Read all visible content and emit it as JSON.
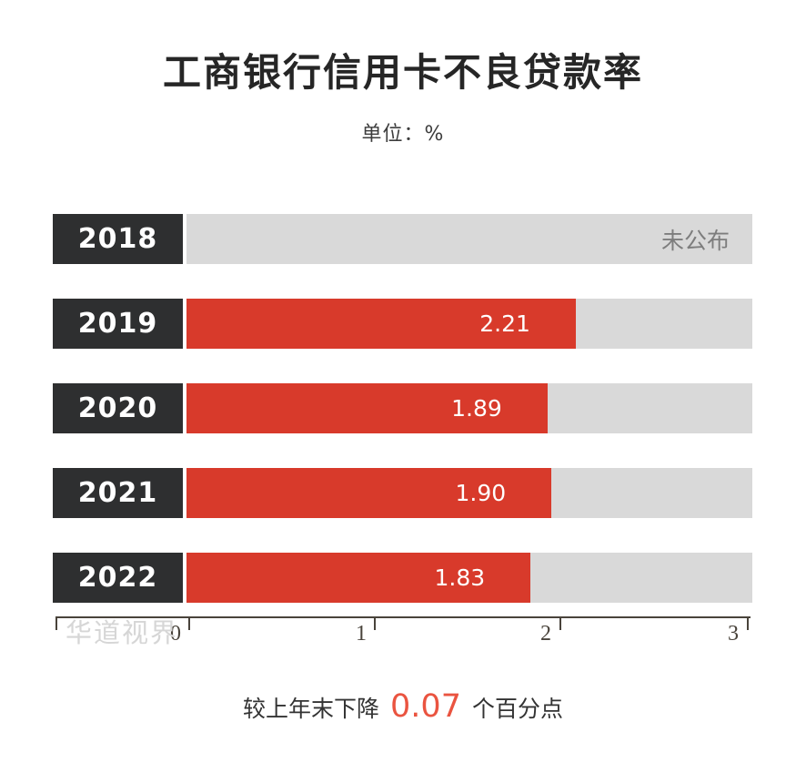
{
  "title": "工商银行信用卡不良贷款率",
  "unit_label": "单位：%",
  "watermark": "华道视界",
  "annotation": {
    "prefix": "较上年末下降",
    "highlight": "0.07",
    "suffix": "个百分点"
  },
  "colors": {
    "bar_red": "#d83a2b",
    "track_gray": "#d9d9d9",
    "year_box_dark": "#2e2f30",
    "highlight_red": "#ea5440",
    "axis": "#49433b",
    "not_published_text": "#7d7d7d",
    "watermark_gray": "#d6d6d6"
  },
  "chart_data": {
    "type": "bar",
    "orientation": "horizontal",
    "title": "工商银行信用卡不良贷款率",
    "unit": "%",
    "categories": [
      "2018",
      "2019",
      "2020",
      "2021",
      "2022"
    ],
    "values": [
      null,
      2.21,
      1.89,
      1.9,
      1.83
    ],
    "xlim": [
      0,
      3
    ],
    "x_ticks": [
      "0",
      "1",
      "2",
      "3"
    ],
    "grid": false,
    "legend": false,
    "annotation_text": "较上年末下降 0.07 个百分点",
    "rows": [
      {
        "year": "2018",
        "value": null,
        "value_label": "未公布",
        "bar_fraction": "0%"
      },
      {
        "year": "2019",
        "value": 2.21,
        "value_label": "2.21",
        "bar_fraction": "68.8%"
      },
      {
        "year": "2020",
        "value": 1.89,
        "value_label": "1.89",
        "bar_fraction": "63.8%"
      },
      {
        "year": "2021",
        "value": 1.9,
        "value_label": "1.90",
        "bar_fraction": "64.5%"
      },
      {
        "year": "2022",
        "value": 1.83,
        "value_label": "1.83",
        "bar_fraction": "60.8%"
      }
    ]
  }
}
